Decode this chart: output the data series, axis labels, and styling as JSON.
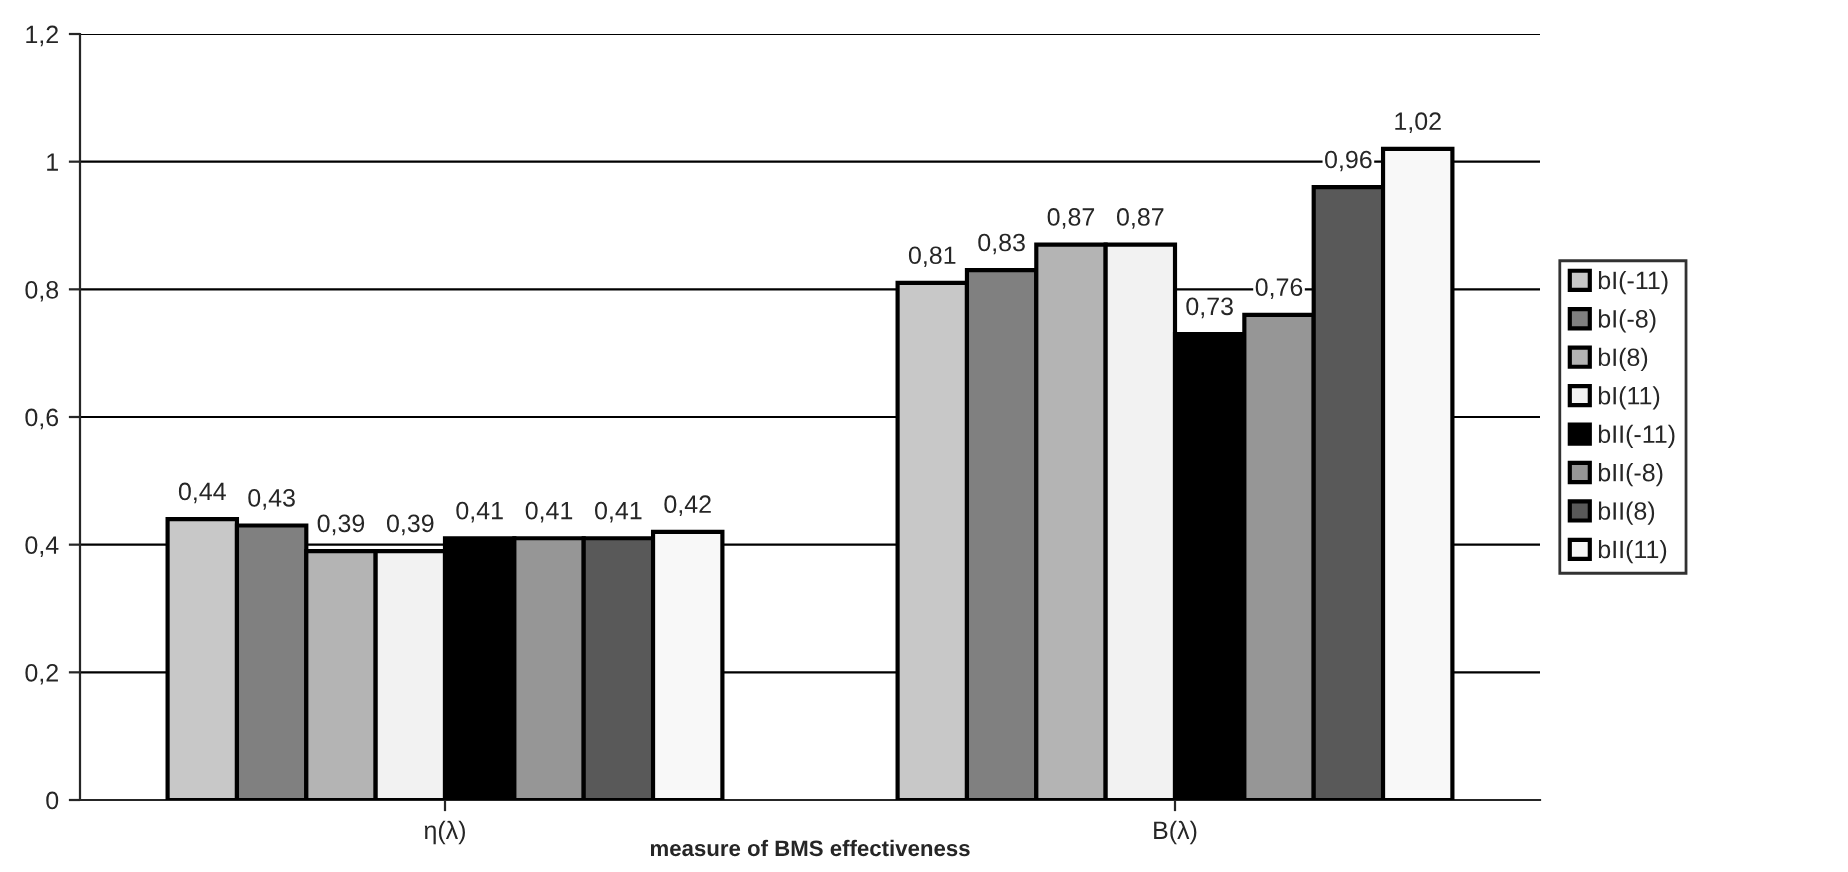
{
  "chart_data": {
    "type": "bar",
    "xlabel": "measure of BMS effectiveness",
    "categories": [
      "η(λ)",
      "B(λ)"
    ],
    "series": [
      {
        "name": "bI(-11)",
        "color": "#c8c8c8",
        "values": [
          0.44,
          0.81
        ],
        "value_labels": [
          "0,44",
          "0,81"
        ]
      },
      {
        "name": "bI(-8)",
        "color": "#808080",
        "values": [
          0.43,
          0.83
        ],
        "value_labels": [
          "0,43",
          "0,83"
        ]
      },
      {
        "name": "bI(8)",
        "color": "#b4b4b4",
        "values": [
          0.39,
          0.87
        ],
        "value_labels": [
          "0,39",
          "0,87"
        ]
      },
      {
        "name": "bI(11)",
        "color": "#f2f2f2",
        "values": [
          0.39,
          0.87
        ],
        "value_labels": [
          "0,39",
          "0,87"
        ]
      },
      {
        "name": "bII(-11)",
        "color": "#000000",
        "values": [
          0.41,
          0.73
        ],
        "value_labels": [
          "0,41",
          "0,73"
        ]
      },
      {
        "name": "bII(-8)",
        "color": "#969696",
        "values": [
          0.41,
          0.76
        ],
        "value_labels": [
          "0,41",
          "0,76"
        ]
      },
      {
        "name": "bII(8)",
        "color": "#595959",
        "values": [
          0.41,
          0.96
        ],
        "value_labels": [
          "0,41",
          "0,96"
        ]
      },
      {
        "name": "bII(11)",
        "color": "#f8f8f8",
        "values": [
          0.42,
          1.02
        ],
        "value_labels": [
          "0,42",
          "1,02"
        ]
      }
    ],
    "ylim": [
      0,
      1.2
    ],
    "yticks": [
      0,
      {
        "value": 0.2,
        "label": "0,2"
      },
      {
        "value": 0.4,
        "label": "0,4"
      },
      {
        "value": 0.6,
        "label": "0,6"
      },
      {
        "value": 0.8,
        "label": "0,8"
      },
      1,
      {
        "value": 1.2,
        "label": "1,2"
      }
    ],
    "grid": "y",
    "legend": "right"
  }
}
